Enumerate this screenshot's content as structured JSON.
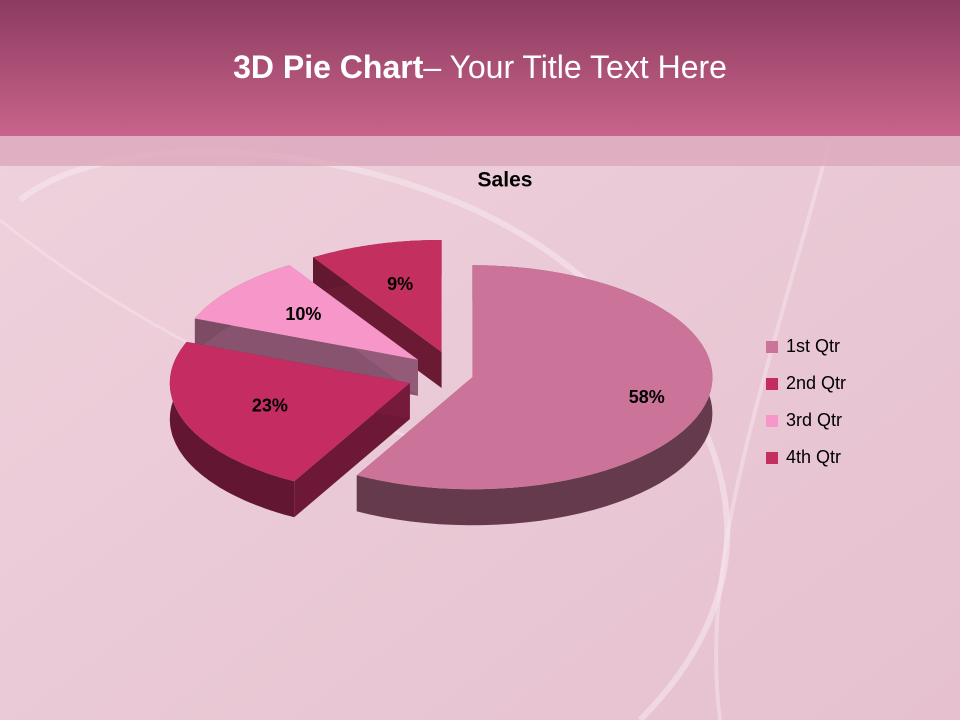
{
  "slide_title": {
    "bold": "3D Pie Chart",
    "rest": "– Your Title Text Here"
  },
  "chart_data": {
    "type": "pie",
    "title": "Sales",
    "categories": [
      "1st Qtr",
      "2nd Qtr",
      "3rd Qtr",
      "4th Qtr"
    ],
    "values": [
      58,
      23,
      10,
      9
    ],
    "value_labels": [
      "58%",
      "23%",
      "10%",
      "9%"
    ],
    "colors": [
      "#cc7399",
      "#c42c62",
      "#f797c9",
      "#c3305f"
    ],
    "legend": "right"
  }
}
